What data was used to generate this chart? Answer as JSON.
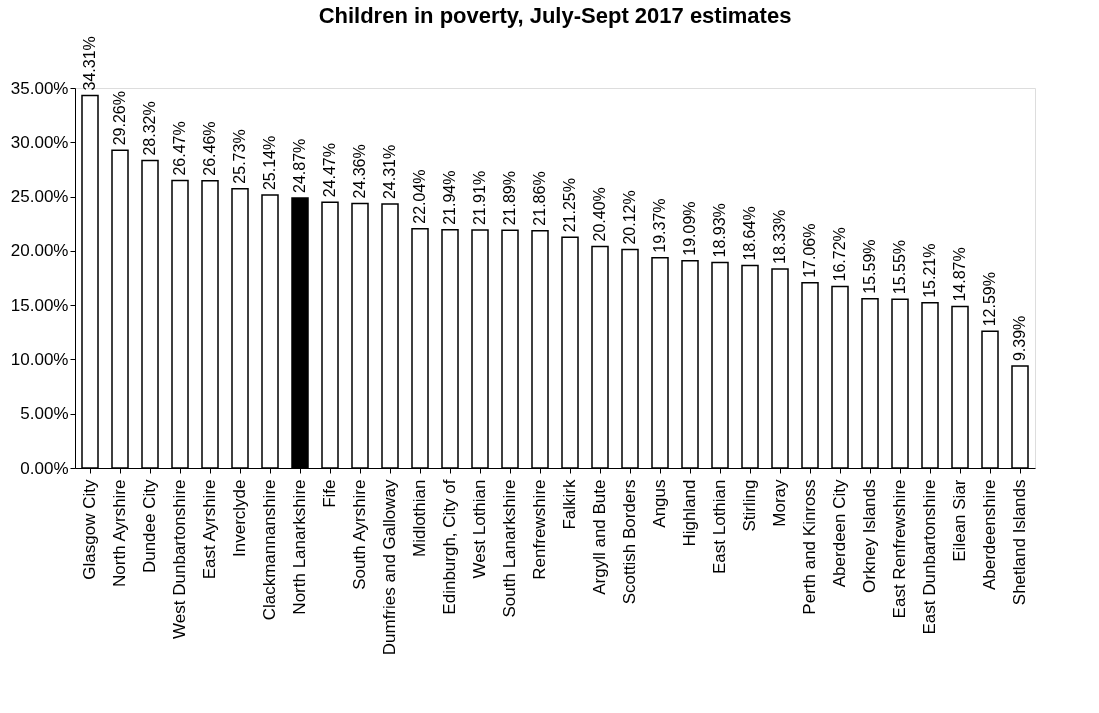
{
  "chart_data": {
    "type": "bar",
    "title": "Children in poverty, July-Sept 2017 estimates",
    "categories": [
      "Glasgow City",
      "North Ayrshire",
      "Dundee City",
      "West Dunbartonshire",
      "East Ayrshire",
      "Inverclyde",
      "Clackmannanshire",
      "North Lanarkshire",
      "Fife",
      "South Ayrshire",
      "Dumfries and Galloway",
      "Midlothian",
      "Edinburgh, City of",
      "West Lothian",
      "South Lanarkshire",
      "Renfrewshire",
      "Falkirk",
      "Argyll and Bute",
      "Scottish Borders",
      "Angus",
      "Highland",
      "East Lothian",
      "Stirling",
      "Moray",
      "Perth and Kinross",
      "Aberdeen City",
      "Orkney Islands",
      "East Renfrewshire",
      "East Dunbartonshire",
      "Eilean Siar",
      "Aberdeenshire",
      "Shetland Islands"
    ],
    "values": [
      34.31,
      29.26,
      28.32,
      26.47,
      26.46,
      25.73,
      25.14,
      24.87,
      24.47,
      24.36,
      24.31,
      22.04,
      21.94,
      21.91,
      21.89,
      21.86,
      21.25,
      20.4,
      20.12,
      19.37,
      19.09,
      18.93,
      18.64,
      18.33,
      17.06,
      16.72,
      15.59,
      15.55,
      15.21,
      14.87,
      12.59,
      9.39
    ],
    "value_labels": [
      "34.31%",
      "29.26%",
      "28.32%",
      "26.47%",
      "26.46%",
      "25.73%",
      "25.14%",
      "24.87%",
      "24.47%",
      "24.36%",
      "24.31%",
      "22.04%",
      "21.94%",
      "21.91%",
      "21.89%",
      "21.86%",
      "21.25%",
      "20.40%",
      "20.12%",
      "19.37%",
      "19.09%",
      "18.93%",
      "18.64%",
      "18.33%",
      "17.06%",
      "16.72%",
      "15.59%",
      "15.55%",
      "15.21%",
      "14.87%",
      "12.59%",
      "9.39%"
    ],
    "colors": [
      "#ffffff",
      "#ffffff",
      "#ffffff",
      "#ffffff",
      "#ffffff",
      "#ffffff",
      "#ffffff",
      "#000000",
      "#ffffff",
      "#ffffff",
      "#ffffff",
      "#ffffff",
      "#ffffff",
      "#ffffff",
      "#ffffff",
      "#ffffff",
      "#ffffff",
      "#ffffff",
      "#ffffff",
      "#ffffff",
      "#ffffff",
      "#ffffff",
      "#ffffff",
      "#ffffff",
      "#ffffff",
      "#ffffff",
      "#ffffff",
      "#ffffff",
      "#ffffff",
      "#ffffff",
      "#ffffff",
      "#ffffff"
    ],
    "ylim": [
      0,
      35
    ],
    "yticks": [
      {
        "value": 0,
        "label": "0.00%"
      },
      {
        "value": 5,
        "label": "5.00%"
      },
      {
        "value": 10,
        "label": "10.00%"
      },
      {
        "value": 15,
        "label": "15.00%"
      },
      {
        "value": 20,
        "label": "20.00%"
      },
      {
        "value": 25,
        "label": "25.00%"
      },
      {
        "value": 30,
        "label": "30.00%"
      },
      {
        "value": 35,
        "label": "35.00%"
      }
    ],
    "grid": false
  }
}
